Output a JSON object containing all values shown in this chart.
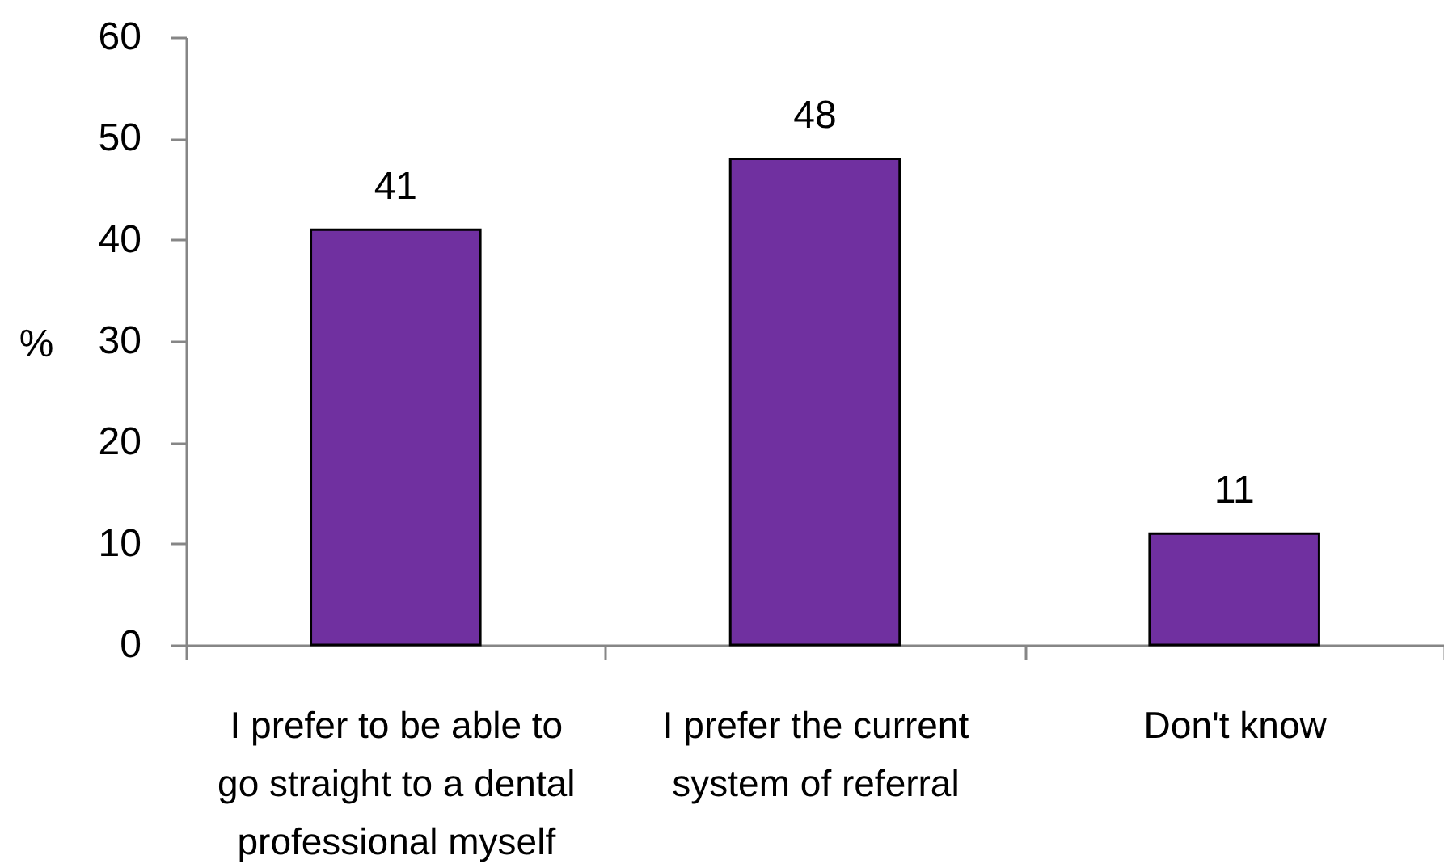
{
  "chart_data": {
    "type": "bar",
    "ylabel": "%",
    "categories": [
      "I prefer to be able to go straight to a dental professional myself",
      "I prefer the current system of referral",
      "Don't know"
    ],
    "values": [
      41,
      48,
      11
    ],
    "color": "#7030a0",
    "ylim": [
      0,
      60
    ],
    "yticks": [
      0,
      10,
      20,
      30,
      40,
      50,
      60
    ],
    "data_labels": true
  }
}
